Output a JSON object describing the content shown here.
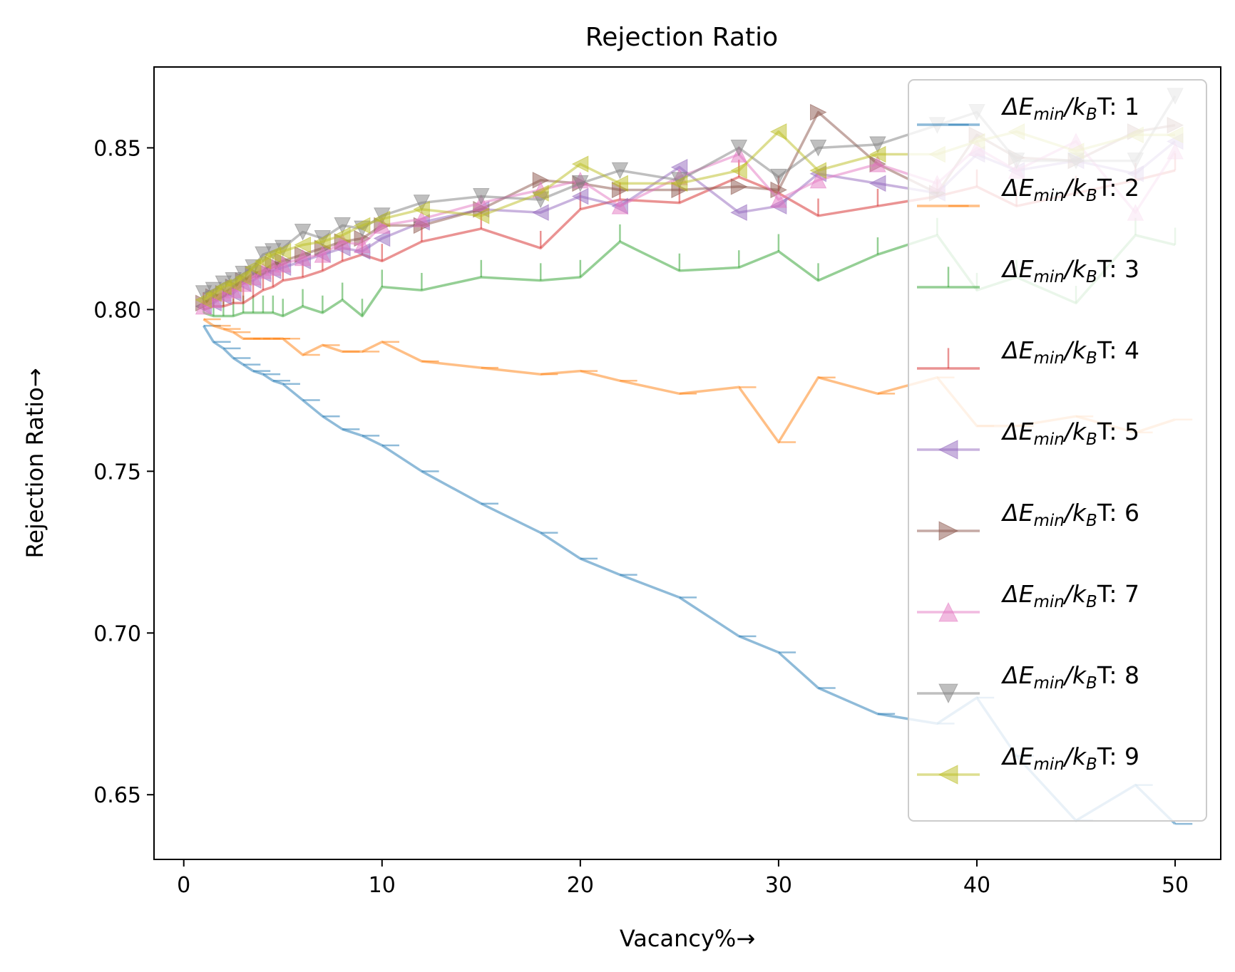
{
  "chart_data": {
    "type": "line",
    "title": "Rejection Ratio",
    "xlabel": "Vacancy%→",
    "ylabel": "Rejection Ratio→",
    "xlim": [
      -1.5,
      52.3
    ],
    "ylim": [
      0.63,
      0.875
    ],
    "xticks": [
      0,
      10,
      20,
      30,
      40,
      50
    ],
    "yticks": [
      0.65,
      0.7,
      0.75,
      0.8,
      0.85
    ],
    "xtick_labels": [
      "0",
      "10",
      "20",
      "30",
      "40",
      "50"
    ],
    "ytick_labels": [
      "0.65",
      "0.70",
      "0.75",
      "0.80",
      "0.85"
    ],
    "grid": false,
    "legend_position": "upper right",
    "x": [
      1,
      1.5,
      2,
      2.5,
      3,
      3.5,
      4,
      4.5,
      5,
      6,
      7,
      8,
      9,
      10,
      12,
      15,
      18,
      20,
      22,
      25,
      28,
      30,
      32,
      35,
      38,
      40,
      42,
      45,
      48,
      50
    ],
    "series": [
      {
        "name": "1",
        "legend_prefix": "ΔE",
        "legend_sub": "min",
        "legend_mid": "/k",
        "legend_sub2": "B",
        "legend_suffix": "T: ",
        "legend_value": "1",
        "color": "#1f77b4",
        "marker": "hline",
        "values": [
          0.795,
          0.79,
          0.788,
          0.785,
          0.783,
          0.781,
          0.78,
          0.778,
          0.777,
          0.772,
          0.767,
          0.763,
          0.761,
          0.758,
          0.75,
          0.74,
          0.731,
          0.723,
          0.718,
          0.711,
          0.699,
          0.694,
          0.683,
          0.675,
          0.672,
          0.68,
          0.662,
          0.642,
          0.653,
          0.641
        ]
      },
      {
        "name": "2",
        "legend_prefix": "ΔE",
        "legend_sub": "min",
        "legend_mid": "/k",
        "legend_sub2": "B",
        "legend_suffix": "T:  ",
        "legend_value": "2",
        "color": "#ff7f0e",
        "marker": "hline",
        "values": [
          0.797,
          0.795,
          0.794,
          0.793,
          0.791,
          0.791,
          0.791,
          0.791,
          0.791,
          0.786,
          0.789,
          0.787,
          0.787,
          0.79,
          0.784,
          0.782,
          0.78,
          0.781,
          0.778,
          0.774,
          0.776,
          0.759,
          0.779,
          0.774,
          0.779,
          0.764,
          0.764,
          0.767,
          0.762,
          0.766
        ]
      },
      {
        "name": "3",
        "legend_prefix": "ΔE",
        "legend_sub": "min",
        "legend_mid": "/k",
        "legend_sub2": "B",
        "legend_suffix": "T:  ",
        "legend_value": "3",
        "color": "#2ca02c",
        "marker": "vline",
        "values": [
          0.799,
          0.798,
          0.798,
          0.798,
          0.799,
          0.799,
          0.799,
          0.799,
          0.798,
          0.801,
          0.799,
          0.803,
          0.798,
          0.807,
          0.806,
          0.81,
          0.809,
          0.81,
          0.821,
          0.812,
          0.813,
          0.818,
          0.809,
          0.817,
          0.823,
          0.806,
          0.81,
          0.802,
          0.823,
          0.82
        ]
      },
      {
        "name": "4",
        "legend_prefix": "ΔE",
        "legend_sub": "min",
        "legend_mid": "/k",
        "legend_sub2": "B",
        "legend_suffix": "T:  ",
        "legend_value": "4",
        "color": "#d62728",
        "marker": "vline",
        "values": [
          0.8,
          0.801,
          0.801,
          0.802,
          0.802,
          0.804,
          0.806,
          0.807,
          0.809,
          0.81,
          0.812,
          0.815,
          0.817,
          0.815,
          0.821,
          0.825,
          0.819,
          0.831,
          0.834,
          0.833,
          0.841,
          0.836,
          0.829,
          0.832,
          0.835,
          0.838,
          0.832,
          0.836,
          0.84,
          0.843
        ]
      },
      {
        "name": "5",
        "legend_prefix": "ΔE",
        "legend_sub": "min",
        "legend_mid": "/k",
        "legend_sub2": "B",
        "legend_suffix": "T: ",
        "legend_value": "5",
        "color": "#9467bd",
        "marker": "triangle-left",
        "values": [
          0.801,
          0.802,
          0.804,
          0.805,
          0.808,
          0.809,
          0.811,
          0.812,
          0.813,
          0.815,
          0.817,
          0.819,
          0.818,
          0.822,
          0.827,
          0.831,
          0.83,
          0.835,
          0.832,
          0.844,
          0.83,
          0.832,
          0.842,
          0.839,
          0.836,
          0.848,
          0.843,
          0.846,
          0.842,
          0.852
        ]
      },
      {
        "name": "6",
        "legend_prefix": "ΔE",
        "legend_sub": "min",
        "legend_mid": "/k",
        "legend_sub2": "B",
        "legend_suffix": "T: ",
        "legend_value": "6",
        "color": "#8c564b",
        "marker": "triangle-right",
        "values": [
          0.802,
          0.804,
          0.805,
          0.807,
          0.809,
          0.811,
          0.812,
          0.814,
          0.815,
          0.817,
          0.819,
          0.821,
          0.822,
          0.826,
          0.826,
          0.831,
          0.84,
          0.839,
          0.837,
          0.837,
          0.838,
          0.837,
          0.861,
          0.845,
          0.836,
          0.854,
          0.847,
          0.846,
          0.855,
          0.857
        ]
      },
      {
        "name": "7",
        "legend_prefix": "ΔE",
        "legend_sub": "min",
        "legend_mid": "/k",
        "legend_sub2": "B",
        "legend_suffix": "T: ",
        "legend_value": "7",
        "color": "#e377c2",
        "marker": "triangle-up",
        "values": [
          0.801,
          0.803,
          0.805,
          0.806,
          0.808,
          0.81,
          0.812,
          0.813,
          0.814,
          0.816,
          0.817,
          0.821,
          0.82,
          0.826,
          0.828,
          0.833,
          0.837,
          0.84,
          0.832,
          0.841,
          0.848,
          0.834,
          0.84,
          0.845,
          0.839,
          0.85,
          0.843,
          0.852,
          0.83,
          0.849
        ]
      },
      {
        "name": "8",
        "legend_prefix": "ΔE",
        "legend_sub": "min",
        "legend_mid": "/k",
        "legend_sub2": "B",
        "legend_suffix": "T: ",
        "legend_value": "8",
        "color": "#7f7f7f",
        "marker": "triangle-down",
        "values": [
          0.805,
          0.806,
          0.808,
          0.809,
          0.811,
          0.813,
          0.817,
          0.818,
          0.819,
          0.824,
          0.822,
          0.826,
          0.825,
          0.829,
          0.833,
          0.835,
          0.834,
          0.839,
          0.843,
          0.84,
          0.85,
          0.841,
          0.85,
          0.851,
          0.857,
          0.861,
          0.846,
          0.846,
          0.846,
          0.866
        ]
      },
      {
        "name": "9",
        "legend_prefix": "ΔE",
        "legend_sub": "min",
        "legend_mid": "/k",
        "legend_sub2": "B",
        "legend_suffix": "T: ",
        "legend_value": "9",
        "color": "#bcbd22",
        "marker": "triangle-left",
        "values": [
          0.803,
          0.805,
          0.807,
          0.808,
          0.81,
          0.813,
          0.815,
          0.817,
          0.818,
          0.82,
          0.821,
          0.823,
          0.826,
          0.828,
          0.831,
          0.829,
          0.836,
          0.845,
          0.839,
          0.839,
          0.843,
          0.855,
          0.843,
          0.848,
          0.848,
          0.852,
          0.855,
          0.849,
          0.854,
          0.854
        ]
      }
    ]
  }
}
